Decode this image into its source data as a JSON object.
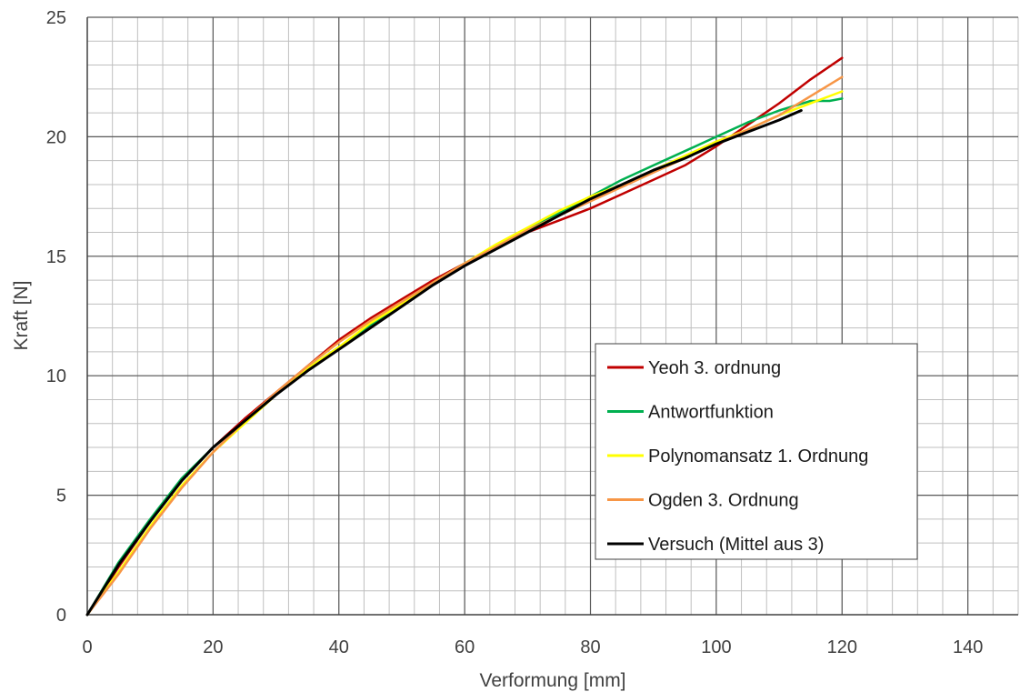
{
  "chart_data": {
    "type": "line",
    "title": "",
    "xlabel": "Verformung [mm]",
    "ylabel": "Kraft [N]",
    "xlim": [
      0,
      148
    ],
    "ylim": [
      0,
      25
    ],
    "x_ticks": [
      0,
      20,
      40,
      60,
      80,
      100,
      120,
      140
    ],
    "y_ticks": [
      0,
      5,
      10,
      15,
      20,
      25
    ],
    "x_minor_step": 4,
    "y_minor_step": 1,
    "grid": true,
    "legend_position": "center-right",
    "series": [
      {
        "name": "Yeoh 3. ordnung",
        "color": "#c00000",
        "points": [
          [
            0,
            0
          ],
          [
            5,
            2.0
          ],
          [
            10,
            3.9
          ],
          [
            15,
            5.6
          ],
          [
            20,
            7.0
          ],
          [
            25,
            8.2
          ],
          [
            30,
            9.3
          ],
          [
            35,
            10.4
          ],
          [
            40,
            11.5
          ],
          [
            45,
            12.4
          ],
          [
            50,
            13.2
          ],
          [
            55,
            14.0
          ],
          [
            60,
            14.7
          ],
          [
            65,
            15.4
          ],
          [
            70,
            16.0
          ],
          [
            75,
            16.5
          ],
          [
            80,
            17.0
          ],
          [
            85,
            17.6
          ],
          [
            90,
            18.2
          ],
          [
            95,
            18.8
          ],
          [
            100,
            19.6
          ],
          [
            105,
            20.5
          ],
          [
            110,
            21.4
          ],
          [
            115,
            22.4
          ],
          [
            120,
            23.3
          ]
        ]
      },
      {
        "name": "Antwortfunktion",
        "color": "#00b050",
        "points": [
          [
            0,
            0
          ],
          [
            5,
            2.2
          ],
          [
            10,
            4.0
          ],
          [
            15,
            5.7
          ],
          [
            20,
            7.0
          ],
          [
            25,
            8.1
          ],
          [
            30,
            9.2
          ],
          [
            35,
            10.3
          ],
          [
            40,
            11.2
          ],
          [
            45,
            12.1
          ],
          [
            50,
            13.0
          ],
          [
            55,
            13.9
          ],
          [
            60,
            14.7
          ],
          [
            65,
            15.4
          ],
          [
            70,
            16.1
          ],
          [
            75,
            16.8
          ],
          [
            80,
            17.5
          ],
          [
            85,
            18.2
          ],
          [
            90,
            18.8
          ],
          [
            95,
            19.4
          ],
          [
            100,
            20.0
          ],
          [
            105,
            20.6
          ],
          [
            110,
            21.1
          ],
          [
            115,
            21.5
          ],
          [
            118,
            21.5
          ],
          [
            120,
            21.6
          ]
        ]
      },
      {
        "name": "Polynomansatz 1. Ordnung",
        "color": "#ffff00",
        "points": [
          [
            0,
            0
          ],
          [
            5,
            1.8
          ],
          [
            10,
            3.7
          ],
          [
            15,
            5.4
          ],
          [
            20,
            6.8
          ],
          [
            25,
            8.0
          ],
          [
            30,
            9.2
          ],
          [
            35,
            10.3
          ],
          [
            40,
            11.2
          ],
          [
            45,
            12.2
          ],
          [
            50,
            13.0
          ],
          [
            55,
            13.9
          ],
          [
            60,
            14.7
          ],
          [
            65,
            15.5
          ],
          [
            70,
            16.2
          ],
          [
            75,
            16.9
          ],
          [
            80,
            17.5
          ],
          [
            85,
            18.0
          ],
          [
            90,
            18.6
          ],
          [
            95,
            19.2
          ],
          [
            100,
            19.8
          ],
          [
            105,
            20.3
          ],
          [
            110,
            20.9
          ],
          [
            115,
            21.4
          ],
          [
            120,
            21.9
          ]
        ]
      },
      {
        "name": "Ogden 3. Ordnung",
        "color": "#f79646",
        "points": [
          [
            0,
            0
          ],
          [
            5,
            1.7
          ],
          [
            10,
            3.6
          ],
          [
            15,
            5.3
          ],
          [
            20,
            6.8
          ],
          [
            25,
            8.1
          ],
          [
            30,
            9.3
          ],
          [
            35,
            10.4
          ],
          [
            40,
            11.4
          ],
          [
            45,
            12.3
          ],
          [
            50,
            13.1
          ],
          [
            55,
            13.9
          ],
          [
            60,
            14.7
          ],
          [
            65,
            15.4
          ],
          [
            70,
            16.1
          ],
          [
            75,
            16.7
          ],
          [
            80,
            17.3
          ],
          [
            85,
            17.9
          ],
          [
            90,
            18.5
          ],
          [
            95,
            19.1
          ],
          [
            100,
            19.7
          ],
          [
            105,
            20.3
          ],
          [
            110,
            20.9
          ],
          [
            115,
            21.7
          ],
          [
            120,
            22.5
          ]
        ]
      },
      {
        "name": "Versuch (Mittel aus 3)",
        "color": "#000000",
        "points": [
          [
            0,
            0
          ],
          [
            5,
            2.1
          ],
          [
            10,
            3.9
          ],
          [
            15,
            5.6
          ],
          [
            20,
            7.0
          ],
          [
            25,
            8.1
          ],
          [
            30,
            9.2
          ],
          [
            35,
            10.2
          ],
          [
            40,
            11.1
          ],
          [
            45,
            12.0
          ],
          [
            50,
            12.9
          ],
          [
            55,
            13.8
          ],
          [
            60,
            14.6
          ],
          [
            65,
            15.3
          ],
          [
            70,
            16.0
          ],
          [
            75,
            16.7
          ],
          [
            80,
            17.4
          ],
          [
            85,
            18.0
          ],
          [
            90,
            18.6
          ],
          [
            95,
            19.1
          ],
          [
            100,
            19.7
          ],
          [
            105,
            20.2
          ],
          [
            110,
            20.7
          ],
          [
            113.5,
            21.1
          ]
        ]
      }
    ]
  }
}
